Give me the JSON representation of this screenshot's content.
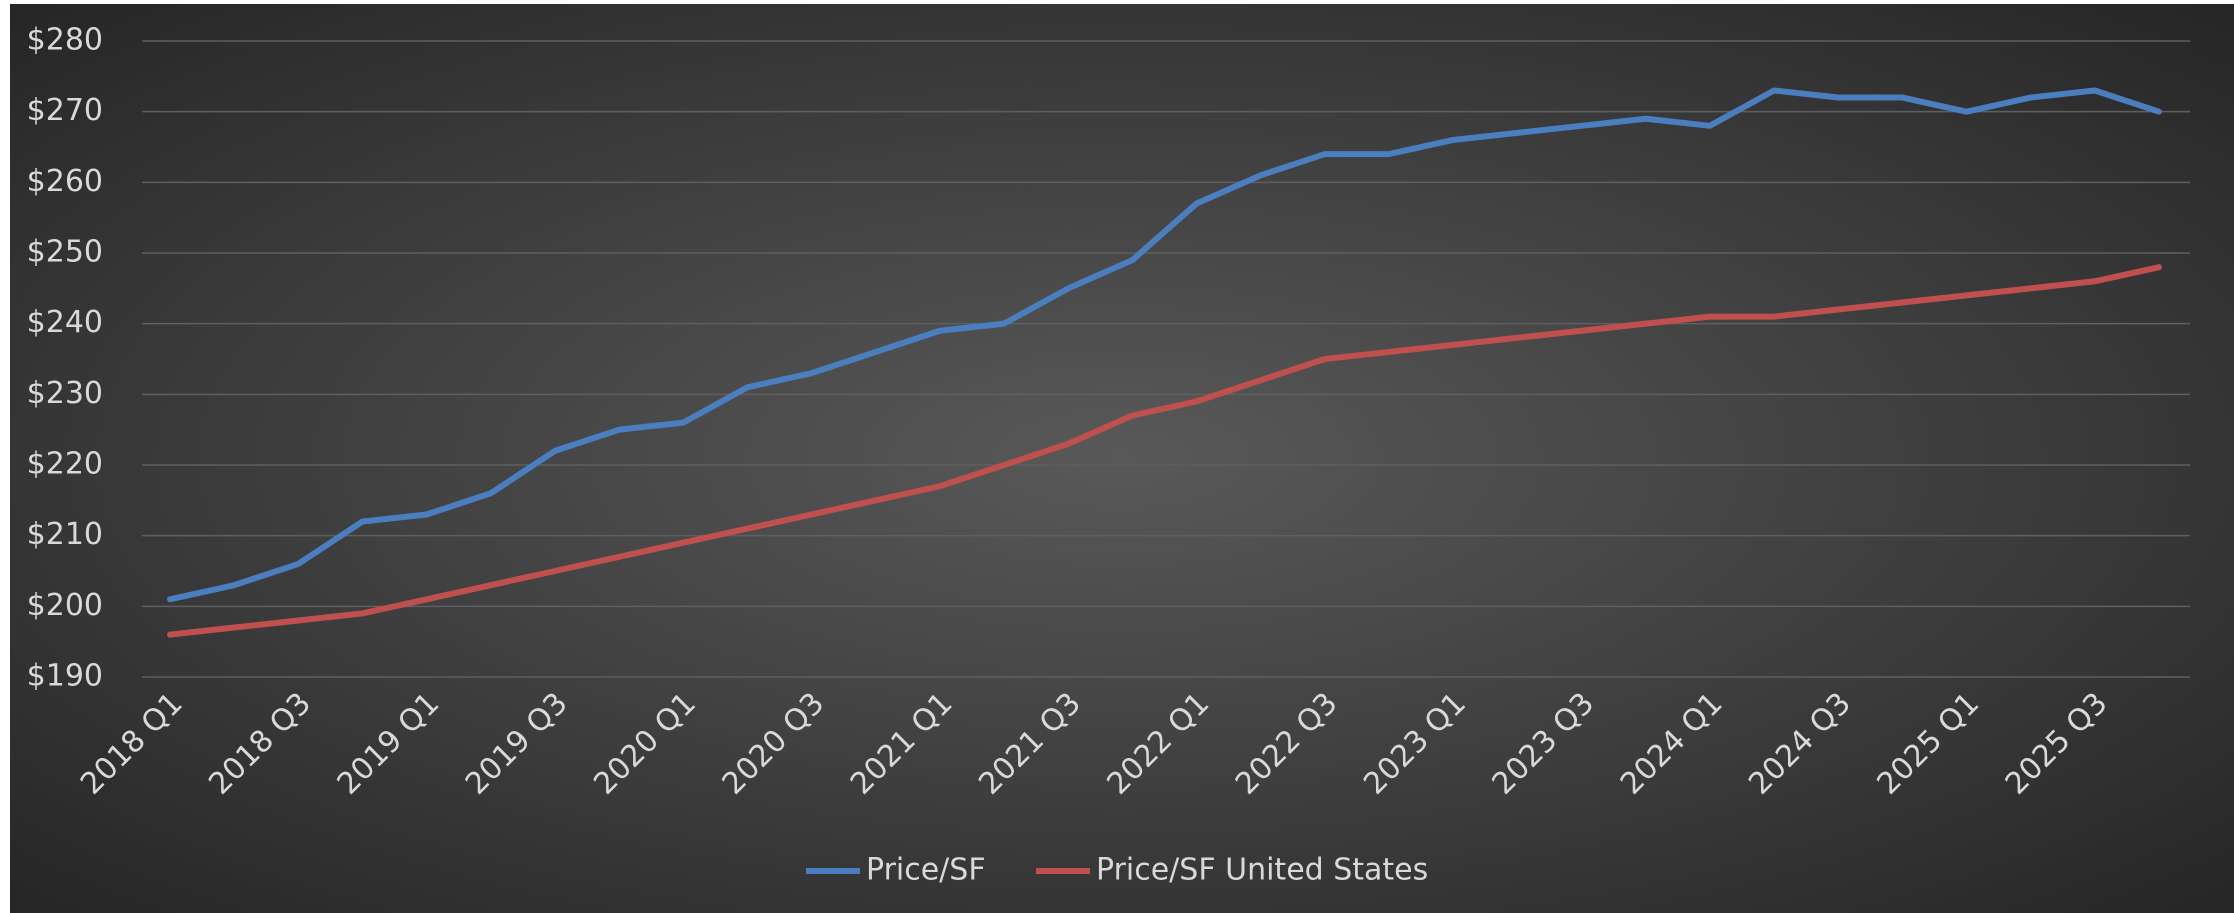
{
  "chart_data": {
    "type": "line",
    "categories": [
      "2018 Q1",
      null,
      "2018 Q3",
      null,
      "2019 Q1",
      null,
      "2019 Q3",
      null,
      "2020 Q1",
      null,
      "2020 Q3",
      null,
      "2021 Q1",
      null,
      "2021 Q3",
      null,
      "2022 Q1",
      null,
      "2022 Q3",
      null,
      "2023 Q1",
      null,
      "2023 Q3",
      null,
      "2024 Q1",
      null,
      "2024 Q3",
      null,
      "2025 Q1",
      null,
      "2025 Q3",
      null
    ],
    "series": [
      {
        "name": "Price/SF",
        "color": "#4a7ebf",
        "values": [
          201,
          203,
          206,
          212,
          213,
          216,
          222,
          225,
          226,
          231,
          233,
          236,
          239,
          240,
          245,
          249,
          257,
          261,
          264,
          264,
          266,
          267,
          268,
          269,
          268,
          273,
          272,
          272,
          270,
          272,
          273,
          270
        ]
      },
      {
        "name": "Price/SF United States",
        "color": "#c0504d",
        "values": [
          196,
          197,
          198,
          199,
          201,
          203,
          205,
          207,
          209,
          211,
          213,
          215,
          217,
          220,
          223,
          227,
          229,
          232,
          235,
          236,
          237,
          238,
          239,
          240,
          241,
          241,
          242,
          243,
          244,
          245,
          246,
          248
        ]
      }
    ],
    "ylim": [
      190,
      280
    ],
    "yticks": [
      {
        "value": 190,
        "label": "$190"
      },
      {
        "value": 200,
        "label": "$200"
      },
      {
        "value": 210,
        "label": "$210"
      },
      {
        "value": 220,
        "label": "$220"
      },
      {
        "value": 230,
        "label": "$230"
      },
      {
        "value": 240,
        "label": "$240"
      },
      {
        "value": 250,
        "label": "$250"
      },
      {
        "value": 260,
        "label": "$260"
      },
      {
        "value": 270,
        "label": "$270"
      },
      {
        "value": 280,
        "label": "$280"
      }
    ],
    "grid": true,
    "legend": "bottom"
  }
}
